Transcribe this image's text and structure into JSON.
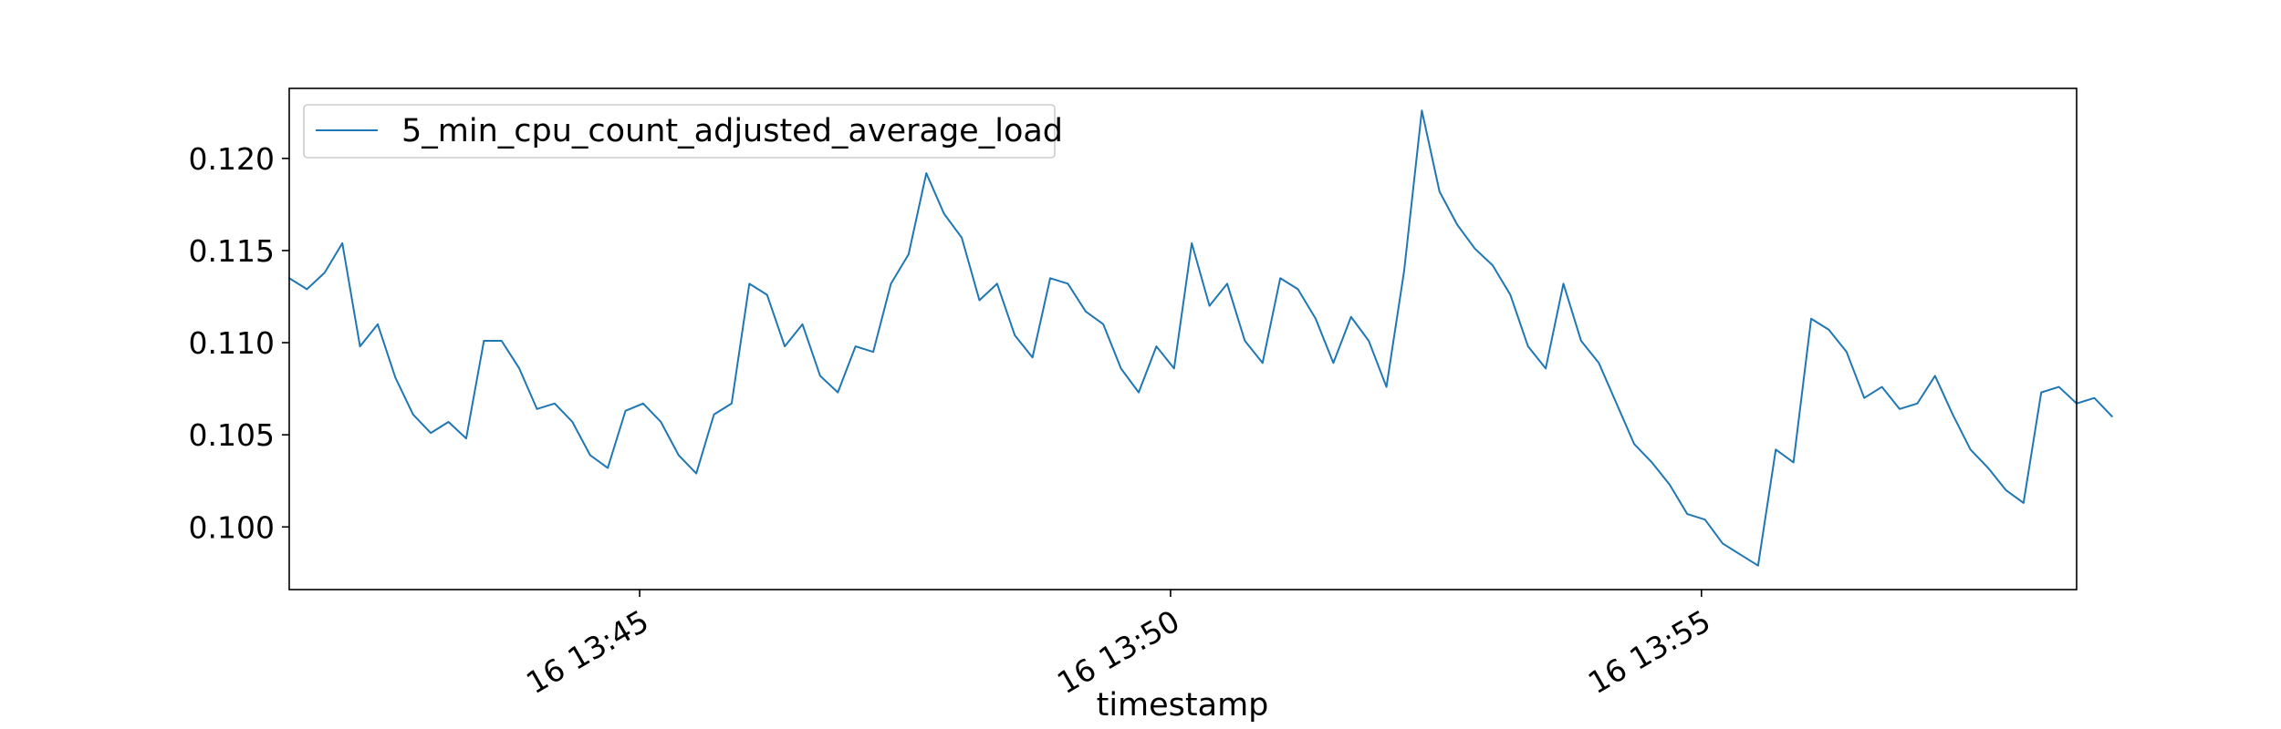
{
  "chart_data": {
    "type": "line",
    "title": "",
    "xlabel": "timestamp",
    "ylabel": "",
    "x_start": "13:41:42",
    "x_end": "13:58:32",
    "x_step_seconds": 10,
    "ylim": [
      0.0966,
      0.1238
    ],
    "x_ticks": [
      {
        "time": "13:45:00",
        "label": "16 13:45"
      },
      {
        "time": "13:50:00",
        "label": "16 13:50"
      },
      {
        "time": "13:55:00",
        "label": "16 13:55"
      }
    ],
    "y_ticks": [
      {
        "value": 0.1,
        "label": "0.100"
      },
      {
        "value": 0.105,
        "label": "0.105"
      },
      {
        "value": 0.11,
        "label": "0.110"
      },
      {
        "value": 0.115,
        "label": "0.115"
      },
      {
        "value": 0.12,
        "label": "0.120"
      }
    ],
    "grid": false,
    "legend_position": "top-left",
    "series": [
      {
        "name": "5_min_cpu_count_adjusted_average_load",
        "color": "#1f77b4",
        "values": [
          0.1135,
          0.1129,
          0.1138,
          0.1154,
          0.1098,
          0.111,
          0.1081,
          0.1061,
          0.1051,
          0.1057,
          0.1048,
          0.1101,
          0.1101,
          0.1086,
          0.1064,
          0.1067,
          0.1057,
          0.1039,
          0.1032,
          0.1063,
          0.1067,
          0.1057,
          0.1039,
          0.1029,
          0.1061,
          0.1067,
          0.1132,
          0.1126,
          0.1098,
          0.111,
          0.1082,
          0.1073,
          0.1098,
          0.1095,
          0.1132,
          0.1148,
          0.1192,
          0.117,
          0.1157,
          0.1123,
          0.1132,
          0.1104,
          0.1092,
          0.1135,
          0.1132,
          0.1117,
          0.111,
          0.1086,
          0.1073,
          0.1098,
          0.1086,
          0.1154,
          0.112,
          0.1132,
          0.1101,
          0.1089,
          0.1135,
          0.1129,
          0.1113,
          0.1089,
          0.1114,
          0.1101,
          0.1076,
          0.1139,
          0.1226,
          0.1182,
          0.1164,
          0.1151,
          0.1142,
          0.1126,
          0.1098,
          0.1086,
          0.1132,
          0.1101,
          0.1089,
          0.1067,
          0.1045,
          0.1035,
          0.1023,
          0.1007,
          0.1004,
          0.0991,
          0.0985,
          0.0979,
          0.1042,
          0.1035,
          0.1113,
          0.1107,
          0.1095,
          0.107,
          0.1076,
          0.1064,
          0.1067,
          0.1082,
          0.1061,
          0.1042,
          0.1032,
          0.102,
          0.1013,
          0.1073,
          0.1076,
          0.1067,
          0.107,
          0.106
        ]
      }
    ]
  }
}
